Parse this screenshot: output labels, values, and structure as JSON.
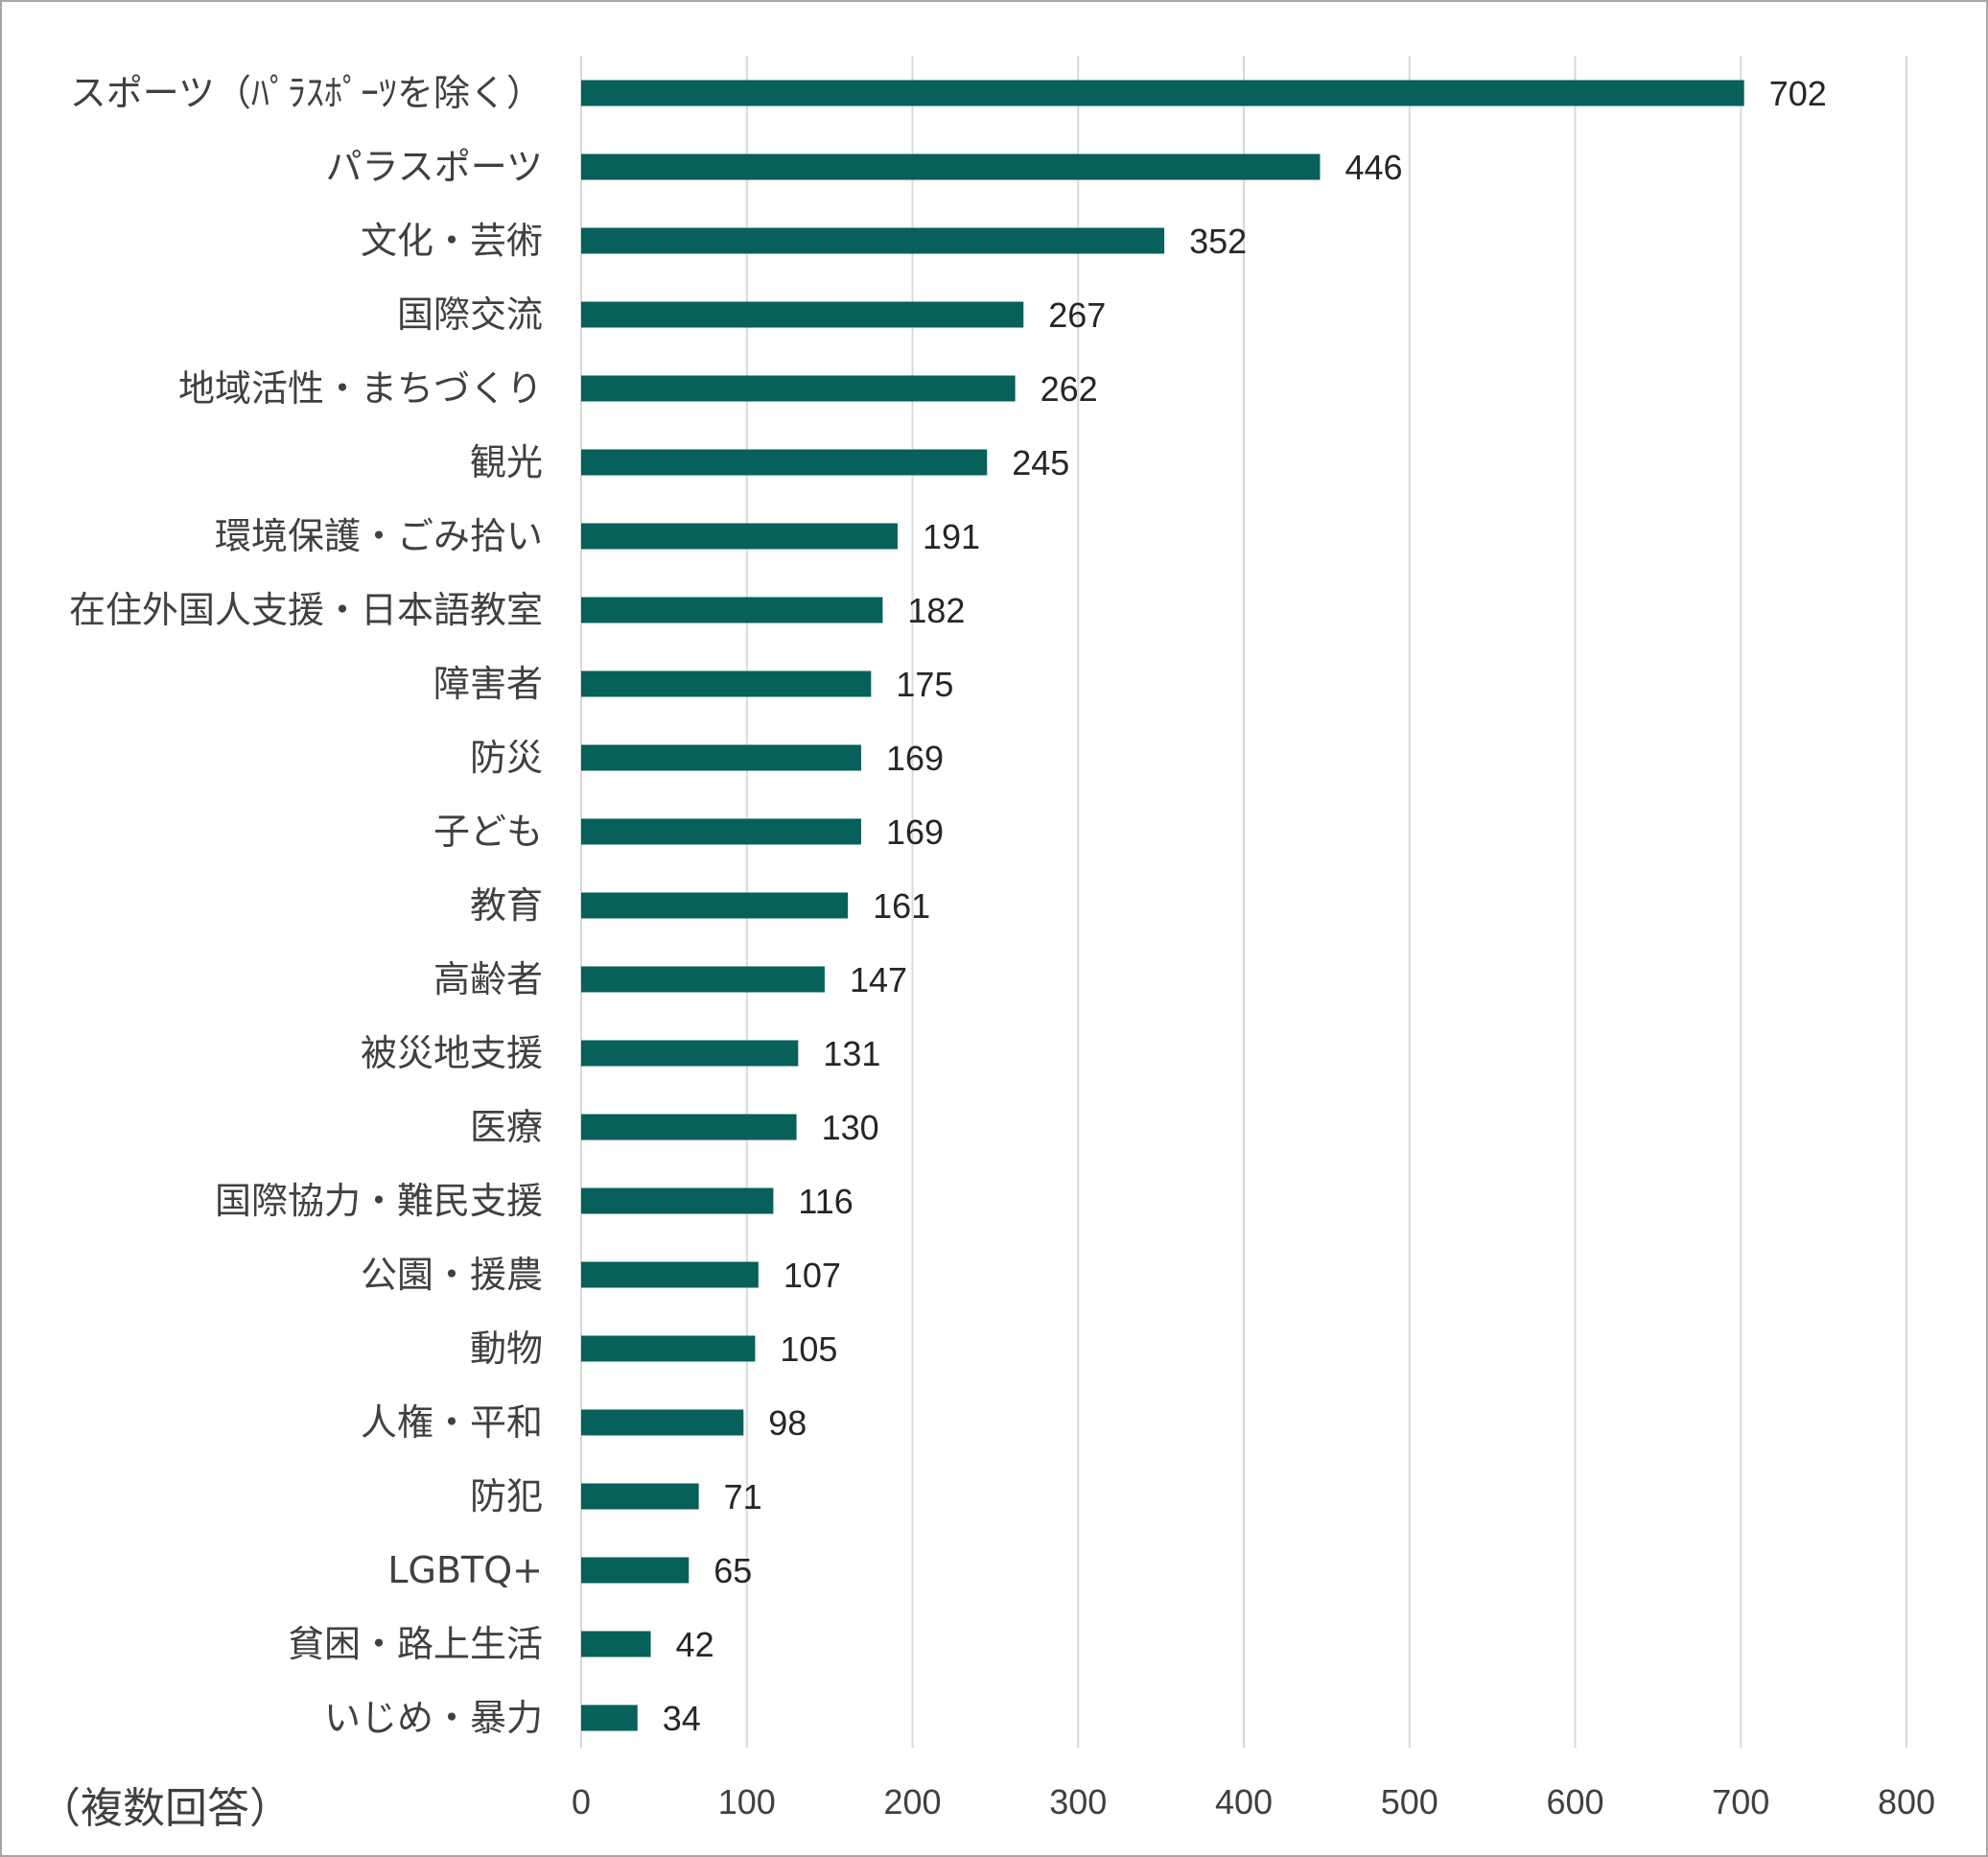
{
  "chart_data": {
    "type": "bar",
    "orientation": "horizontal",
    "title": "",
    "xlabel": "",
    "ylabel": "",
    "note": "（複数回答）",
    "categories": [
      "スポーツ（ﾊﾟﾗｽﾎﾟｰﾂを除く）",
      "パラスポーツ",
      "文化・芸術",
      "国際交流",
      "地域活性・まちづくり",
      "観光",
      "環境保護・ごみ拾い",
      "在住外国人支援・日本語教室",
      "障害者",
      "防災",
      "子ども",
      "教育",
      "高齢者",
      "被災地支援",
      "医療",
      "国際協力・難民支援",
      "公園・援農",
      "動物",
      "人権・平和",
      "防犯",
      "LGBTQ+",
      "貧困・路上生活",
      "いじめ・暴力"
    ],
    "values": [
      702,
      446,
      352,
      267,
      262,
      245,
      191,
      182,
      175,
      169,
      169,
      161,
      147,
      131,
      130,
      116,
      107,
      105,
      98,
      71,
      65,
      42,
      34
    ],
    "xlim": [
      0,
      800
    ],
    "xticks": [
      0,
      100,
      200,
      300,
      400,
      500,
      600,
      700,
      800
    ],
    "grid": true,
    "legend": "none",
    "bar_color": "#07605a",
    "data_labels": true
  }
}
